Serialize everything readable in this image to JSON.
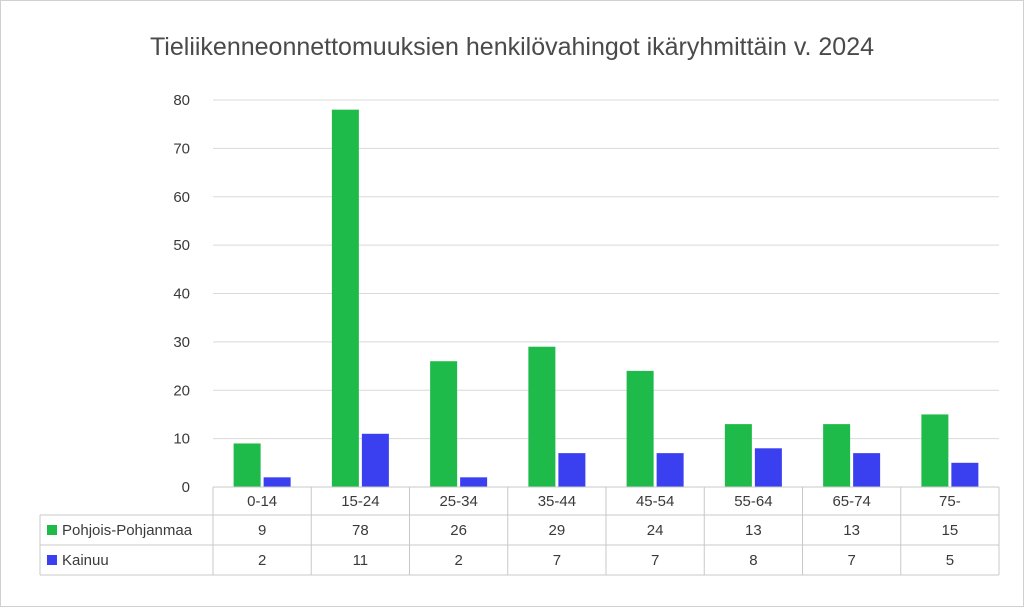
{
  "chart_data": {
    "type": "bar",
    "title": "Tieliikenneonnettomuuksien henkilövahingot ikäryhmittäin v. 2024",
    "categories": [
      "0-14",
      "15-24",
      "25-34",
      "35-44",
      "45-54",
      "55-64",
      "65-74",
      "75-"
    ],
    "series": [
      {
        "name": "Pohjois-Pohjanmaa",
        "color": "#1fbb4a",
        "values": [
          9,
          78,
          26,
          29,
          24,
          13,
          13,
          15
        ]
      },
      {
        "name": "Kainuu",
        "color": "#3a3ff0",
        "values": [
          2,
          11,
          2,
          7,
          7,
          8,
          7,
          5
        ]
      }
    ],
    "ylim": [
      0,
      80
    ],
    "yticks": [
      0,
      10,
      20,
      30,
      40,
      50,
      60,
      70,
      80
    ],
    "grid": true,
    "legend": "data-table"
  }
}
